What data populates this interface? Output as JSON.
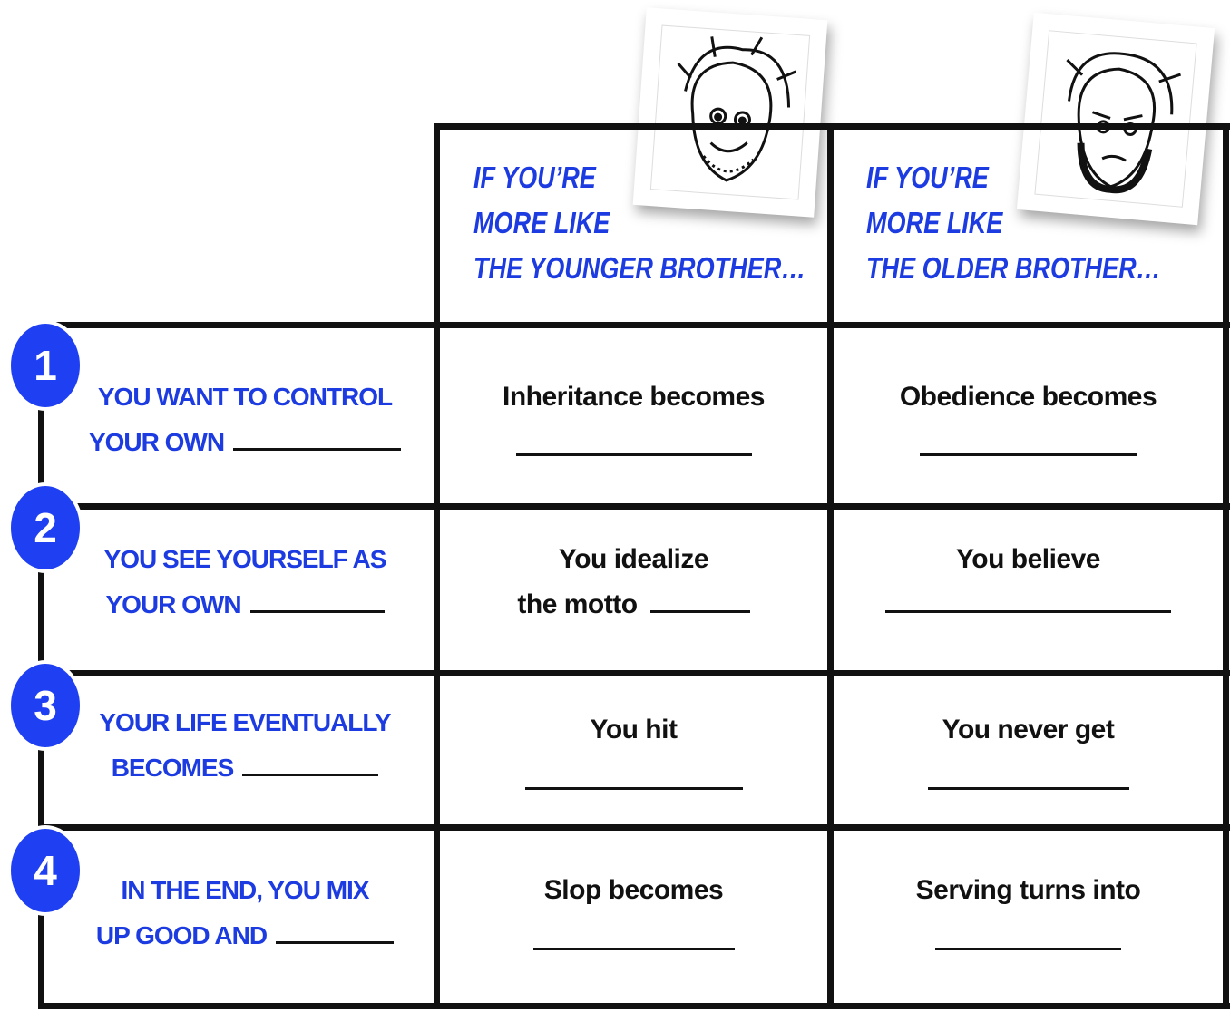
{
  "header": {
    "columns": [
      {
        "lines": [
          "IF YOU’RE",
          "MORE LIKE",
          "THE YOUNGER BROTHER…"
        ]
      },
      {
        "lines": [
          "IF YOU’RE",
          "MORE LIKE",
          "THE OLDER BROTHER…"
        ]
      }
    ]
  },
  "rows": [
    {
      "number": "1",
      "prompt": [
        "YOU WANT TO CONTROL",
        "YOUR OWN"
      ],
      "cells": [
        [
          "Inheritance becomes"
        ],
        [
          "Obedience becomes"
        ]
      ]
    },
    {
      "number": "2",
      "prompt": [
        "YOU SEE YOURSELF AS",
        "YOUR OWN"
      ],
      "cells": [
        [
          "You idealize",
          "the motto"
        ],
        [
          "You believe"
        ]
      ]
    },
    {
      "number": "3",
      "prompt": [
        "YOUR LIFE EVENTUALLY",
        "BECOMES"
      ],
      "cells": [
        [
          "You hit"
        ],
        [
          "You never get"
        ]
      ]
    },
    {
      "number": "4",
      "prompt": [
        "IN THE END, YOU MIX",
        "UP GOOD AND"
      ],
      "cells": [
        [
          "Slop becomes"
        ],
        [
          "Serving turns into"
        ]
      ]
    }
  ]
}
